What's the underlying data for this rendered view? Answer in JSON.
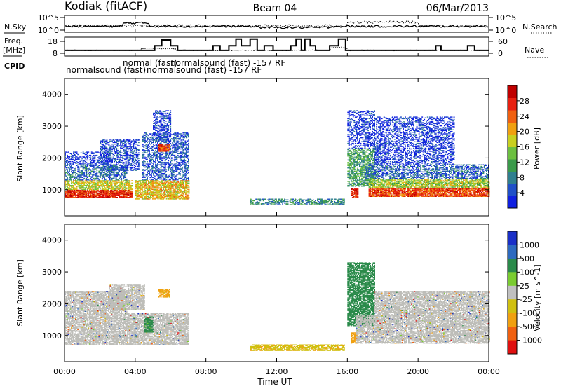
{
  "header": {
    "station": "Kodiak (fitACF)",
    "beam": "Beam 04",
    "date": "06/Mar/2013"
  },
  "top_panels": {
    "nsky_label": "N.Sky",
    "nsky_ticks": [
      "10^5",
      "10^0"
    ],
    "nsearch_label": "N.Search",
    "nsearch_ticks": [
      "10^5",
      "10^0"
    ],
    "freq_label_1": "Freq.",
    "freq_label_2": "[MHz]",
    "freq_ticks": [
      "18",
      "8"
    ],
    "nave_label": "Nave",
    "nave_ticks": [
      "60",
      "0"
    ],
    "cpid_label": "CPID"
  },
  "cpid_annotations": [
    "normalsound (fast)",
    "normal (fast)",
    "normalsound (fast) -157 RF",
    "normalsound (fast) -157 RF"
  ],
  "colors": {
    "power_scale": [
      "#1020e0",
      "#2050c8",
      "#2f7f8f",
      "#3a9a4a",
      "#6cc040",
      "#c8d020",
      "#f0a010",
      "#f06010",
      "#e82010",
      "#c00000"
    ],
    "velocity_scale": [
      "#1a30c8",
      "#2d6ac0",
      "#2a8a4a",
      "#7acc30",
      "#c0c0c0",
      "#d0c010",
      "#f0a010",
      "#f06010",
      "#e01010"
    ],
    "ground_scatter": "#bdbdb8"
  },
  "chart_data": [
    {
      "type": "heatmap",
      "name": "power",
      "ylabel": "Slant Range [km]",
      "ylim": [
        180,
        4500
      ],
      "yticks": [
        "1000",
        "2000",
        "3000",
        "4000"
      ],
      "colorbar_label": "Power [dB]",
      "colorbar_ticks": [
        "4",
        "8",
        "12",
        "16",
        "20",
        "24",
        "28"
      ],
      "colorbar_range": [
        0,
        32
      ],
      "regions": [
        {
          "t0": 0.0,
          "t1": 3.8,
          "r0": 750,
          "r1": 1000,
          "level": 0.85
        },
        {
          "t0": 0.0,
          "t1": 3.8,
          "r0": 1000,
          "r1": 1300,
          "level": 0.55
        },
        {
          "t0": 0.0,
          "t1": 3.5,
          "r0": 1300,
          "r1": 1800,
          "level": 0.2
        },
        {
          "t0": 0.0,
          "t1": 2.5,
          "r0": 1800,
          "r1": 2200,
          "level": 0.08
        },
        {
          "t0": 2.0,
          "t1": 4.2,
          "r0": 1600,
          "r1": 2600,
          "level": 0.12
        },
        {
          "t0": 4.4,
          "t1": 7.0,
          "r0": 1300,
          "r1": 2800,
          "level": 0.15
        },
        {
          "t0": 4.0,
          "t1": 7.0,
          "r0": 700,
          "r1": 1300,
          "level": 0.6
        },
        {
          "t0": 5.3,
          "t1": 5.9,
          "r0": 2200,
          "r1": 2450,
          "level": 0.8
        },
        {
          "t0": 5.0,
          "t1": 6.0,
          "r0": 2500,
          "r1": 3500,
          "level": 0.1
        },
        {
          "t0": 10.5,
          "t1": 15.8,
          "r0": 520,
          "r1": 700,
          "level": 0.28
        },
        {
          "t0": 16.2,
          "t1": 16.6,
          "r0": 750,
          "r1": 1050,
          "level": 0.85
        },
        {
          "t0": 16.0,
          "t1": 17.5,
          "r0": 1100,
          "r1": 2300,
          "level": 0.35
        },
        {
          "t0": 16.0,
          "t1": 17.5,
          "r0": 2300,
          "r1": 3500,
          "level": 0.08
        },
        {
          "t0": 17.2,
          "t1": 24.0,
          "r0": 780,
          "r1": 1050,
          "level": 0.8
        },
        {
          "t0": 17.2,
          "t1": 24.0,
          "r0": 1050,
          "r1": 1350,
          "level": 0.5
        },
        {
          "t0": 17.0,
          "t1": 24.0,
          "r0": 1350,
          "r1": 1800,
          "level": 0.18
        },
        {
          "t0": 17.5,
          "t1": 22.0,
          "r0": 1800,
          "r1": 3300,
          "level": 0.08
        }
      ]
    },
    {
      "type": "heatmap",
      "name": "velocity",
      "ylabel": "Slant Range [km]",
      "ylim": [
        180,
        4500
      ],
      "yticks": [
        "1000",
        "2000",
        "3000",
        "4000"
      ],
      "colorbar_label": "Velocity [m s^-1]",
      "colorbar_ticks": [
        "1000",
        "500",
        "100",
        "25",
        "-25",
        "-100",
        "-500",
        "-1000"
      ],
      "regions": [
        {
          "t0": 0.0,
          "t1": 7.0,
          "r0": 700,
          "r1": 1700,
          "value": "ground"
        },
        {
          "t0": 0.0,
          "t1": 3.5,
          "r0": 1700,
          "r1": 2400,
          "value": "ground"
        },
        {
          "t0": 2.5,
          "t1": 4.5,
          "r0": 1800,
          "r1": 2600,
          "value": "ground"
        },
        {
          "t0": 5.3,
          "t1": 5.9,
          "r0": 2200,
          "r1": 2450,
          "value": -150
        },
        {
          "t0": 4.5,
          "t1": 5.0,
          "r0": 1100,
          "r1": 1600,
          "value": 150
        },
        {
          "t0": 10.5,
          "t1": 15.8,
          "r0": 520,
          "r1": 720,
          "value": -80
        },
        {
          "t0": 16.2,
          "t1": 16.6,
          "r0": 750,
          "r1": 1100,
          "value": -200
        },
        {
          "t0": 16.0,
          "t1": 17.5,
          "r0": 1300,
          "r1": 3300,
          "value": 200
        },
        {
          "t0": 16.5,
          "t1": 24.0,
          "r0": 750,
          "r1": 1650,
          "value": "ground"
        },
        {
          "t0": 17.5,
          "t1": 24.0,
          "r0": 1650,
          "r1": 2400,
          "value": "ground"
        }
      ]
    }
  ],
  "time_axis": {
    "xlabel": "Time UT",
    "xlim": [
      0,
      24
    ],
    "ticks": [
      "00:00",
      "04:00",
      "08:00",
      "12:00",
      "16:00",
      "20:00",
      "00:00"
    ]
  }
}
